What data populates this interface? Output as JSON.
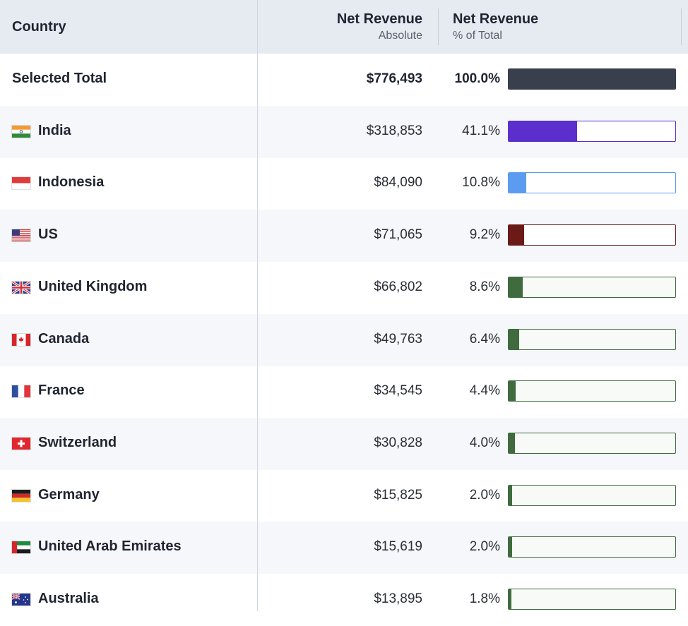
{
  "header": {
    "country": "Country",
    "abs_title": "Net Revenue",
    "abs_sub": "Absolute",
    "pct_title": "Net Revenue",
    "pct_sub": "% of Total"
  },
  "rows": [
    {
      "country": "Selected Total",
      "value": "$776,493",
      "percent": "100.0%",
      "share": 1.0,
      "bar_color": "#3a3f4d",
      "flag": null
    },
    {
      "country": "India",
      "value": "$318,853",
      "percent": "41.1%",
      "share": 0.411,
      "bar_color": "#5b2fcc",
      "flag": "india-flag-icon"
    },
    {
      "country": "Indonesia",
      "value": "$84,090",
      "percent": "10.8%",
      "share": 0.108,
      "bar_color": "#5b9cf0",
      "flag": "indonesia-flag-icon"
    },
    {
      "country": "US",
      "value": "$71,065",
      "percent": "9.2%",
      "share": 0.092,
      "bar_color": "#6b1a18",
      "flag": "us-flag-icon"
    },
    {
      "country": "United Kingdom",
      "value": "$66,802",
      "percent": "8.6%",
      "share": 0.086,
      "bar_color": "#3f6b3f",
      "flag": "uk-flag-icon"
    },
    {
      "country": "Canada",
      "value": "$49,763",
      "percent": "6.4%",
      "share": 0.064,
      "bar_color": "#3f6b3f",
      "flag": "canada-flag-icon"
    },
    {
      "country": "France",
      "value": "$34,545",
      "percent": "4.4%",
      "share": 0.044,
      "bar_color": "#3f6b3f",
      "flag": "france-flag-icon"
    },
    {
      "country": "Switzerland",
      "value": "$30,828",
      "percent": "4.0%",
      "share": 0.04,
      "bar_color": "#3f6b3f",
      "flag": "switzerland-flag-icon"
    },
    {
      "country": "Germany",
      "value": "$15,825",
      "percent": "2.0%",
      "share": 0.02,
      "bar_color": "#3f6b3f",
      "flag": "germany-flag-icon"
    },
    {
      "country": "United Arab Emirates",
      "value": "$15,619",
      "percent": "2.0%",
      "share": 0.02,
      "bar_color": "#3f6b3f",
      "flag": "uae-flag-icon"
    },
    {
      "country": "Australia",
      "value": "$13,895",
      "percent": "1.8%",
      "share": 0.018,
      "bar_color": "#3f6b3f",
      "flag": "australia-flag-icon"
    }
  ]
}
